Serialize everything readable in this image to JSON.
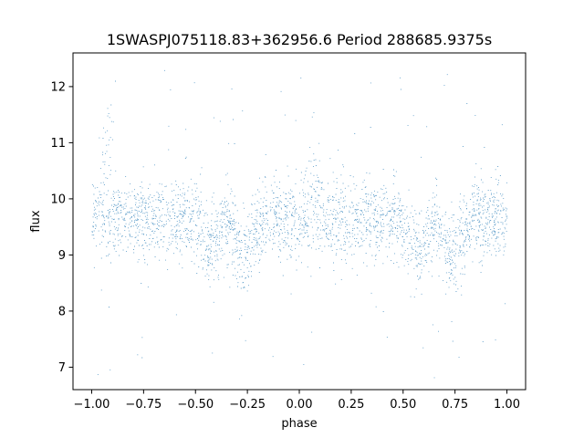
{
  "chart_data": {
    "type": "scatter",
    "title": "1SWASPJ075118.83+362956.6 Period 288685.9375s",
    "xlabel": "phase",
    "ylabel": "flux",
    "xlim": [
      -1.09,
      1.09
    ],
    "ylim": [
      6.6,
      12.6
    ],
    "xticks": [
      -1.0,
      -0.75,
      -0.5,
      -0.25,
      0.0,
      0.25,
      0.5,
      0.75,
      1.0
    ],
    "xtick_labels": [
      "−1.00",
      "−0.75",
      "−0.50",
      "−0.25",
      "0.00",
      "0.25",
      "0.50",
      "0.75",
      "1.00"
    ],
    "yticks": [
      7,
      8,
      9,
      10,
      11,
      12
    ],
    "ytick_labels": [
      "7",
      "8",
      "9",
      "10",
      "11",
      "12"
    ],
    "grid": false,
    "point_color": "#1f77b4",
    "series": [
      {
        "x_range": [
          -1.0,
          1.0
        ],
        "baseline_flux": 9.62,
        "flux_scatter_sd": 0.35,
        "flux_extent": [
          6.8,
          12.3
        ],
        "features": [
          {
            "phase": -0.93,
            "kind": "brightening",
            "peak_flux": 11.2
          },
          {
            "phase": 0.07,
            "kind": "brightening",
            "peak_flux": 11.0
          },
          {
            "phase": -0.43,
            "kind": "dip",
            "min_flux": 8.6
          },
          {
            "phase": -0.27,
            "kind": "dip",
            "min_flux": 8.4
          },
          {
            "phase": 0.57,
            "kind": "dip",
            "min_flux": 8.6
          },
          {
            "phase": 0.73,
            "kind": "dip",
            "min_flux": 8.4
          }
        ]
      }
    ]
  }
}
